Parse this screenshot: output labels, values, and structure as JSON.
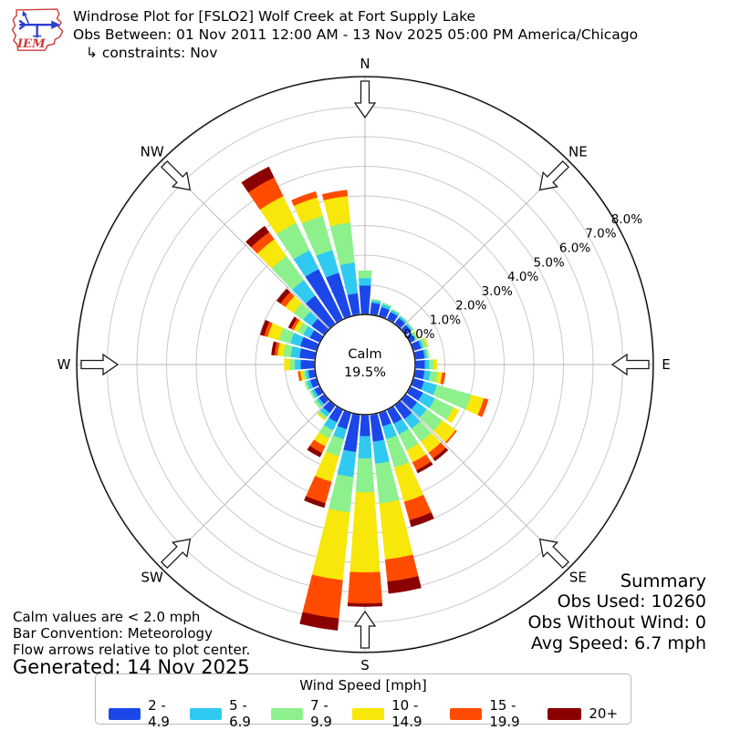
{
  "header": {
    "title": "Windrose Plot for [FSLO2] Wolf Creek at Fort Supply Lake",
    "subtitle": "Obs Between: 01 Nov 2011 12:00 AM - 13 Nov 2025 05:00 PM America/Chicago",
    "constraints": "↳ constraints: Nov",
    "logo_text": "IEM"
  },
  "footnotes": {
    "line1": "Calm values are < 2.0 mph",
    "line2": "Bar Convention: Meteorology",
    "line3": "Flow arrows relative to plot center.",
    "generated": "Generated: 14 Nov 2025"
  },
  "summary": {
    "title": "Summary",
    "obs_used": "Obs Used: 10260",
    "obs_without_wind": "Obs Without Wind: 0",
    "avg_speed": "Avg Speed: 6.7 mph"
  },
  "legend": {
    "title": "Wind Speed [mph]",
    "bins": [
      {
        "label": "2 - 4.9",
        "color": "#1c47e8"
      },
      {
        "label": "5 - 6.9",
        "color": "#2fc9f1"
      },
      {
        "label": "7 - 9.9",
        "color": "#8cf08c"
      },
      {
        "label": "10 - 14.9",
        "color": "#f7e70a"
      },
      {
        "label": "15 - 19.9",
        "color": "#ff4b00"
      },
      {
        "label": "20+",
        "color": "#8b0000"
      }
    ]
  },
  "chart_data": {
    "type": "windrose",
    "title": "Wind frequency (%) by direction and speed bin",
    "calm_label": "Calm",
    "calm_value": "19.5%",
    "units": "mph",
    "bar_convention": "Meteorology",
    "compass_labels": [
      "N",
      "NE",
      "E",
      "SE",
      "S",
      "SW",
      "W",
      "NW"
    ],
    "ring_labels": [
      "0.0%",
      "1.0%",
      "2.0%",
      "3.0%",
      "4.0%",
      "5.0%",
      "6.0%",
      "7.0%",
      "8.0%"
    ],
    "rmax_pct": 8.0,
    "ring_step_pct": 1.0,
    "grid": true,
    "bin_labels": [
      "2 - 4.9",
      "5 - 6.9",
      "7 - 9.9",
      "10 - 14.9",
      "15 - 19.9",
      "20+"
    ],
    "bin_colors": [
      "#1c47e8",
      "#2fc9f1",
      "#8cf08c",
      "#f7e70a",
      "#ff4b00",
      "#8b0000"
    ],
    "directions_deg": [
      0,
      10,
      20,
      30,
      40,
      50,
      60,
      70,
      80,
      90,
      100,
      110,
      120,
      130,
      140,
      150,
      160,
      170,
      180,
      190,
      200,
      210,
      220,
      230,
      240,
      250,
      260,
      270,
      280,
      290,
      300,
      310,
      320,
      330,
      340,
      350
    ],
    "frequencies_pct": [
      [
        0.95,
        0.25,
        0.25,
        0.0,
        0.0,
        0.0
      ],
      [
        0.38,
        0.08,
        0.04,
        0.0,
        0.0,
        0.0
      ],
      [
        0.3,
        0.1,
        0.05,
        0.0,
        0.0,
        0.0
      ],
      [
        0.25,
        0.08,
        0.03,
        0.0,
        0.0,
        0.0
      ],
      [
        0.22,
        0.07,
        0.03,
        0.0,
        0.0,
        0.0
      ],
      [
        0.2,
        0.06,
        0.04,
        0.0,
        0.0,
        0.0
      ],
      [
        0.15,
        0.05,
        0.06,
        0.04,
        0.0,
        0.0
      ],
      [
        0.25,
        0.08,
        0.12,
        0.05,
        0.0,
        0.0
      ],
      [
        0.3,
        0.08,
        0.07,
        0.0,
        0.0,
        0.0
      ],
      [
        0.3,
        0.15,
        0.15,
        0.1,
        0.0,
        0.0
      ],
      [
        0.3,
        0.2,
        0.25,
        0.15,
        0.1,
        0.0
      ],
      [
        0.35,
        0.45,
        1.2,
        0.45,
        0.15,
        0.0
      ],
      [
        0.45,
        0.45,
        0.7,
        0.2,
        0.0,
        0.0
      ],
      [
        0.45,
        0.4,
        0.65,
        0.55,
        0.05,
        0.0
      ],
      [
        0.55,
        0.4,
        0.55,
        0.45,
        0.25,
        0.1
      ],
      [
        0.5,
        0.4,
        0.6,
        0.45,
        0.3,
        0.1
      ],
      [
        0.45,
        0.45,
        1.0,
        1.2,
        0.65,
        0.22
      ],
      [
        0.9,
        0.75,
        1.35,
        1.9,
        0.75,
        0.4
      ],
      [
        0.7,
        0.75,
        1.15,
        2.7,
        1.05,
        0.1
      ],
      [
        1.25,
        0.85,
        1.2,
        2.3,
        1.3,
        0.4
      ],
      [
        0.55,
        0.35,
        0.6,
        0.9,
        0.75,
        0.15
      ],
      [
        0.45,
        0.3,
        0.3,
        0.3,
        0.25,
        0.15
      ],
      [
        0.3,
        0.15,
        0.1,
        0.05,
        0.0,
        0.0
      ],
      [
        0.2,
        0.1,
        0.1,
        0.0,
        0.0,
        0.0
      ],
      [
        0.18,
        0.1,
        0.07,
        0.0,
        0.0,
        0.0
      ],
      [
        0.2,
        0.12,
        0.08,
        0.0,
        0.0,
        0.0
      ],
      [
        0.2,
        0.1,
        0.08,
        0.1,
        0.07,
        0.0
      ],
      [
        0.45,
        0.2,
        0.17,
        0.18,
        0.0,
        0.0
      ],
      [
        0.5,
        0.3,
        0.25,
        0.2,
        0.1,
        0.1
      ],
      [
        0.55,
        0.35,
        0.4,
        0.4,
        0.12,
        0.13
      ],
      [
        0.35,
        0.25,
        0.2,
        0.15,
        0.1,
        0.1
      ],
      [
        0.5,
        0.35,
        0.4,
        0.35,
        0.2,
        0.15
      ],
      [
        1.15,
        0.65,
        1.0,
        0.7,
        0.3,
        0.25
      ],
      [
        1.86,
        0.71,
        1.03,
        1.0,
        0.7,
        0.4
      ],
      [
        1.5,
        0.8,
        1.2,
        0.65,
        0.2,
        0.0
      ],
      [
        0.7,
        1.04,
        1.36,
        0.9,
        0.2,
        0.0
      ]
    ]
  }
}
